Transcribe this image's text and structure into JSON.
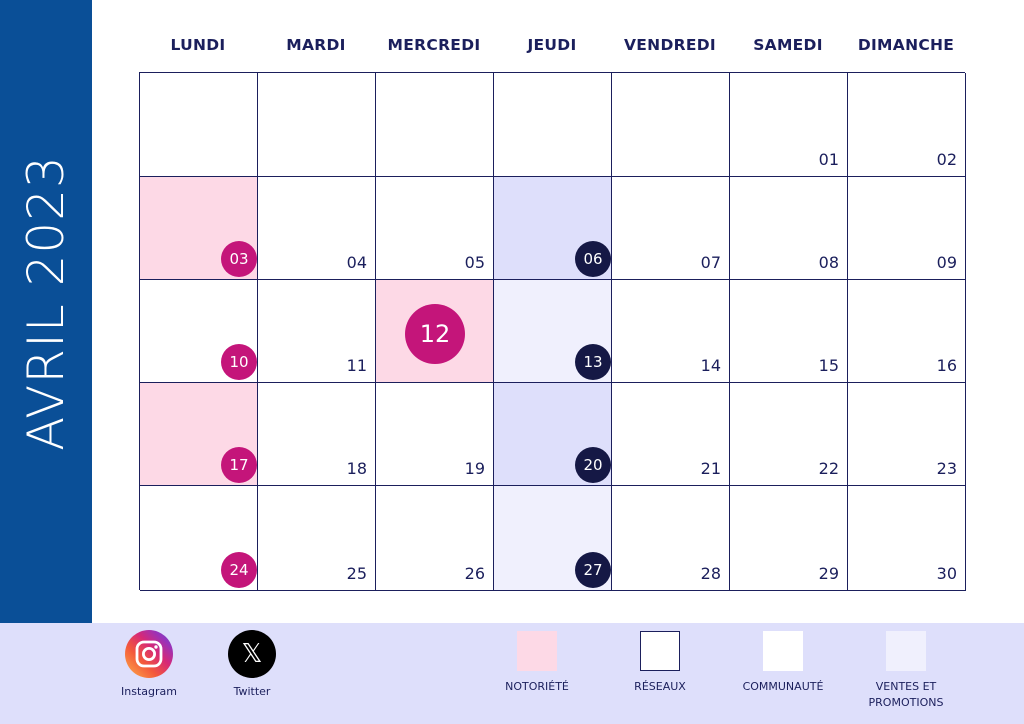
{
  "title": "AVRIL 2023",
  "weekdays": [
    "LUNDI",
    "MARDI",
    "MERCREDI",
    "JEUDI",
    "VENDREDI",
    "SAMEDI",
    "DIMANCHE"
  ],
  "weeks": [
    [
      "",
      "",
      "",
      "",
      "",
      "01",
      "02"
    ],
    [
      "03",
      "04",
      "05",
      "06",
      "07",
      "08",
      "09"
    ],
    [
      "10",
      "11",
      "12",
      "13",
      "14",
      "15",
      "16"
    ],
    [
      "17",
      "18",
      "19",
      "20",
      "21",
      "22",
      "23"
    ],
    [
      "24",
      "25",
      "26",
      "27",
      "28",
      "29",
      "30"
    ]
  ],
  "social": [
    {
      "label": "Instagram",
      "icon": "instagram-icon"
    },
    {
      "label": "Twitter",
      "icon": "x-twitter-icon",
      "glyph": "𝕏"
    }
  ],
  "legend": [
    {
      "label": "NOTORIÉTÉ",
      "color": "#fdd9e6"
    },
    {
      "label": "RÉSEAUX",
      "color": "#dedffb"
    },
    {
      "label": "COMMUNAUTÉ",
      "color": "#ffffff"
    },
    {
      "label": "VENTES ET\nPROMOTIONS",
      "color": "#f0f0fd"
    }
  ],
  "colors": {
    "sidebar": "#0a4f97",
    "text": "#1b1f5c",
    "pink_badge": "#c4157a",
    "navy_badge": "#151845",
    "footer": "#dedffb"
  }
}
